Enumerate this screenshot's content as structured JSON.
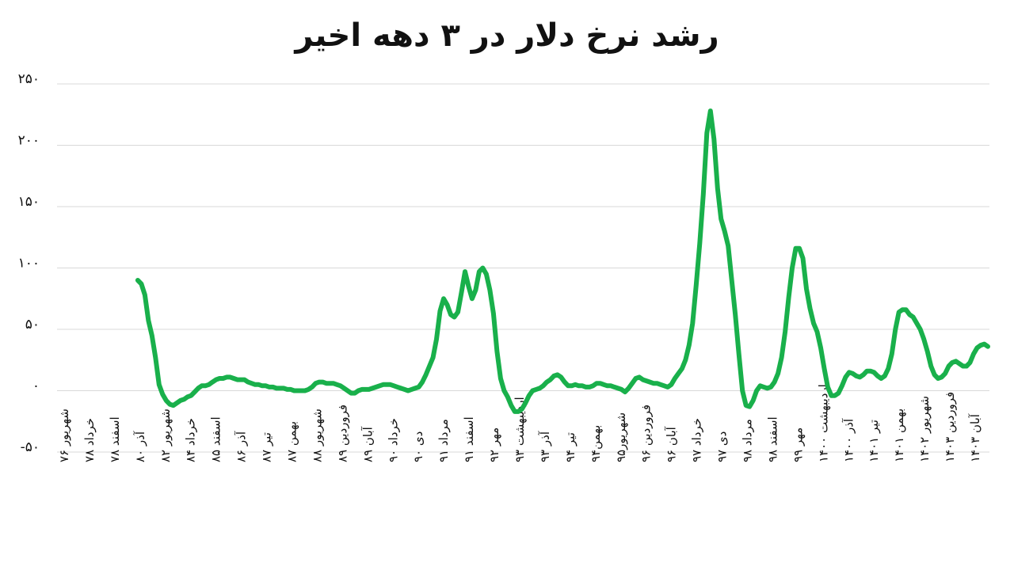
{
  "chart_data": {
    "type": "line",
    "title": "رشد نرخ دلار در ۳ دهه اخیر",
    "xlabel": "",
    "ylabel": "",
    "ylim": [
      -50,
      250
    ],
    "yticks": [
      -50,
      0,
      50,
      100,
      150,
      200,
      250
    ],
    "ytick_labels": [
      "-۵۰",
      "۰",
      "۵۰",
      "۱۰۰",
      "۱۵۰",
      "۲۰۰",
      "۲۵۰"
    ],
    "grid": true,
    "legend": "none",
    "colors": {
      "line": "#19b04b",
      "grid": "#d9d9d9",
      "text": "#111111",
      "axis": "#bfbfbf"
    },
    "x_tick_labels": [
      "شهریور ۷۶",
      "خرداد ۷۸",
      "اسفند ۷۸",
      "آذر ۸۰",
      "شهریور ۸۲",
      "خرداد ۸۴",
      "اسفند ۸۵",
      "آذر ۸۶",
      "تیر ۸۷",
      "بهمن ۸۷",
      "شهریور ۸۸",
      "فروردین ۸۹",
      "آبان ۸۹",
      "خرداد ۹۰",
      "دی ۹۰",
      "مرداد ۹۱",
      "اسفند ۹۱",
      "مهر ۹۲",
      "اردیبهشت ۹۳",
      "آذر ۹۳",
      "تیر ۹۴",
      "بهمن۹۴",
      "شهریور۹۵",
      "فروردین ۹۶",
      "آبان ۹۶",
      "خرداد ۹۷",
      "دی ۹۷",
      "مرداد ۹۸",
      "اسفند ۹۸",
      "مهر ۹۹",
      "اردیبهشت ۱۴۰۰",
      "آذر ۱۴۰۰",
      "تیر ۱۴۰۱",
      "بهمن ۱۴۰۱",
      "شهریور ۱۴۰۲",
      "فروردین ۱۴۰۳",
      "آبان ۱۴۰۳"
    ],
    "series": [
      {
        "values": [
          null,
          null,
          null,
          null,
          null,
          null,
          null,
          null,
          null,
          null,
          null,
          null,
          90,
          87,
          78,
          57,
          45,
          27,
          5,
          -3,
          -8,
          -11,
          -12,
          -10,
          -8,
          -7,
          -5,
          -4,
          -1,
          2,
          4,
          4,
          5,
          7,
          9,
          10,
          10,
          11,
          11,
          10,
          9,
          9,
          9,
          7,
          6,
          5,
          5,
          4,
          4,
          3,
          3,
          2,
          2,
          2,
          1,
          1,
          0,
          0,
          0,
          0,
          1,
          3,
          6,
          7,
          7,
          6,
          6,
          6,
          5,
          4,
          2,
          0,
          -2,
          -2,
          0,
          1,
          1,
          1,
          2,
          3,
          4,
          5,
          5,
          5,
          4,
          3,
          2,
          1,
          0,
          1,
          2,
          3,
          7,
          13,
          20,
          27,
          42,
          65,
          75,
          70,
          62,
          60,
          64,
          80,
          97,
          85,
          75,
          82,
          97,
          100,
          95,
          82,
          63,
          32,
          10,
          0,
          -5,
          -12,
          -17,
          -17,
          -15,
          -10,
          -4,
          0,
          1,
          2,
          4,
          7,
          9,
          12,
          13,
          11,
          7,
          4,
          4,
          5,
          4,
          4,
          3,
          3,
          4,
          6,
          6,
          5,
          4,
          4,
          3,
          2,
          1,
          -1,
          2,
          6,
          10,
          11,
          9,
          8,
          7,
          6,
          6,
          5,
          4,
          3,
          5,
          10,
          14,
          18,
          25,
          37,
          55,
          86,
          120,
          160,
          210,
          228,
          205,
          165,
          140,
          130,
          118,
          90,
          62,
          30,
          0,
          -12,
          -13,
          -8,
          0,
          4,
          3,
          2,
          3,
          7,
          14,
          27,
          48,
          76,
          100,
          116,
          116,
          108,
          83,
          67,
          55,
          48,
          35,
          18,
          3,
          -4,
          -4,
          -2,
          4,
          11,
          15,
          14,
          12,
          11,
          13,
          16,
          16,
          15,
          12,
          10,
          12,
          18,
          30,
          50,
          64,
          66,
          66,
          62,
          60,
          55,
          50,
          42,
          32,
          20,
          13,
          10,
          11,
          14,
          20,
          23,
          24,
          22,
          20,
          20,
          23,
          30,
          35,
          37,
          38,
          36
        ]
      }
    ]
  }
}
